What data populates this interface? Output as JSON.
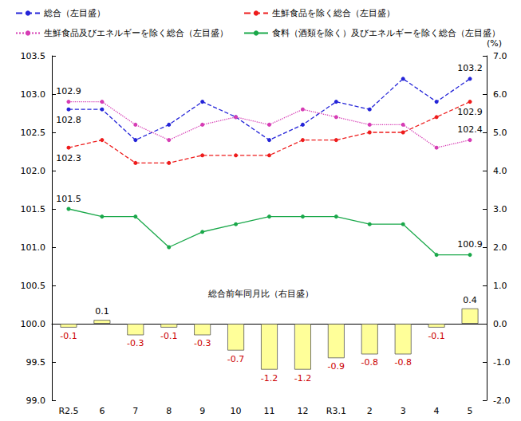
{
  "chart_data": {
    "type": "line",
    "categories": [
      "R2.5",
      "6",
      "7",
      "8",
      "9",
      "10",
      "11",
      "12",
      "R3.1",
      "2",
      "3",
      "4",
      "5"
    ],
    "series": [
      {
        "name": "総合（左目盛）",
        "color": "#2424d8",
        "line_style": "dashed",
        "marker": "circle",
        "values": [
          102.8,
          102.8,
          102.4,
          102.6,
          102.9,
          102.7,
          102.4,
          102.6,
          102.9,
          102.8,
          103.2,
          102.9,
          103.2
        ],
        "value_labels": [
          "102.8",
          null,
          null,
          null,
          null,
          null,
          null,
          null,
          null,
          null,
          null,
          null,
          "103.2"
        ]
      },
      {
        "name": "生鮮食品を除く総合（左目盛）",
        "color": "#ee1c1c",
        "line_style": "dashed",
        "marker": "circle",
        "values": [
          102.3,
          102.4,
          102.1,
          102.1,
          102.2,
          102.2,
          102.2,
          102.4,
          102.4,
          102.5,
          102.5,
          102.7,
          102.9
        ],
        "value_labels": [
          "102.3",
          null,
          null,
          null,
          null,
          null,
          null,
          null,
          null,
          null,
          null,
          null,
          "102.9"
        ]
      },
      {
        "name": "生鮮食品及びエネルギーを除く総合（左目盛）",
        "color": "#d63cb4",
        "line_style": "dotted",
        "marker": "circle",
        "values": [
          102.9,
          102.9,
          102.6,
          102.4,
          102.6,
          102.7,
          102.6,
          102.8,
          102.7,
          102.6,
          102.6,
          102.3,
          102.4
        ],
        "value_labels": [
          "102.9",
          null,
          null,
          null,
          null,
          null,
          null,
          null,
          null,
          null,
          null,
          null,
          "102.4"
        ]
      },
      {
        "name": "食料（酒類を除く）及びエネルギーを除く総合（左目盛）",
        "color": "#1aa84a",
        "line_style": "solid",
        "marker": "circle",
        "values": [
          101.5,
          101.4,
          101.4,
          101.0,
          101.2,
          101.3,
          101.4,
          101.4,
          101.4,
          101.3,
          101.3,
          100.9,
          100.9
        ],
        "value_labels": [
          "101.5",
          null,
          null,
          null,
          null,
          null,
          null,
          null,
          null,
          null,
          null,
          null,
          "100.9"
        ]
      },
      {
        "name": "総合前年同月比（右目盛）",
        "type": "bar",
        "axis": "y2",
        "color": "#ffff99",
        "data_labels": true,
        "values": [
          -0.1,
          0.1,
          -0.3,
          -0.1,
          -0.3,
          -0.7,
          -1.2,
          -1.2,
          -0.9,
          -0.8,
          -0.8,
          -0.1,
          0.4
        ]
      }
    ],
    "ylim": [
      99,
      103.5
    ],
    "yticks": [
      {
        "value": 99,
        "label": "99.0"
      },
      99.5,
      {
        "value": 100,
        "label": "100.0"
      },
      100.5,
      {
        "value": 101,
        "label": "101.0"
      },
      101.5,
      {
        "value": 102,
        "label": "102.0"
      },
      102.5,
      {
        "value": 103,
        "label": "103.0"
      },
      103.5
    ],
    "y2lim": [
      -2,
      7
    ],
    "y2ticks": [
      {
        "value": -2,
        "label": "-2.0"
      },
      {
        "value": -1,
        "label": "-1.0"
      },
      {
        "value": 0,
        "label": "0.0"
      },
      {
        "value": 1,
        "label": "1.0"
      },
      {
        "value": 2,
        "label": "2.0"
      },
      {
        "value": 3,
        "label": "3.0"
      },
      {
        "value": 4,
        "label": "4.0"
      },
      {
        "value": 5,
        "label": "5.0"
      },
      {
        "value": 6,
        "label": "6.0"
      },
      {
        "value": 7,
        "label": "7.0"
      }
    ],
    "y2_label": "(%)",
    "grid": false,
    "legend": "top"
  }
}
